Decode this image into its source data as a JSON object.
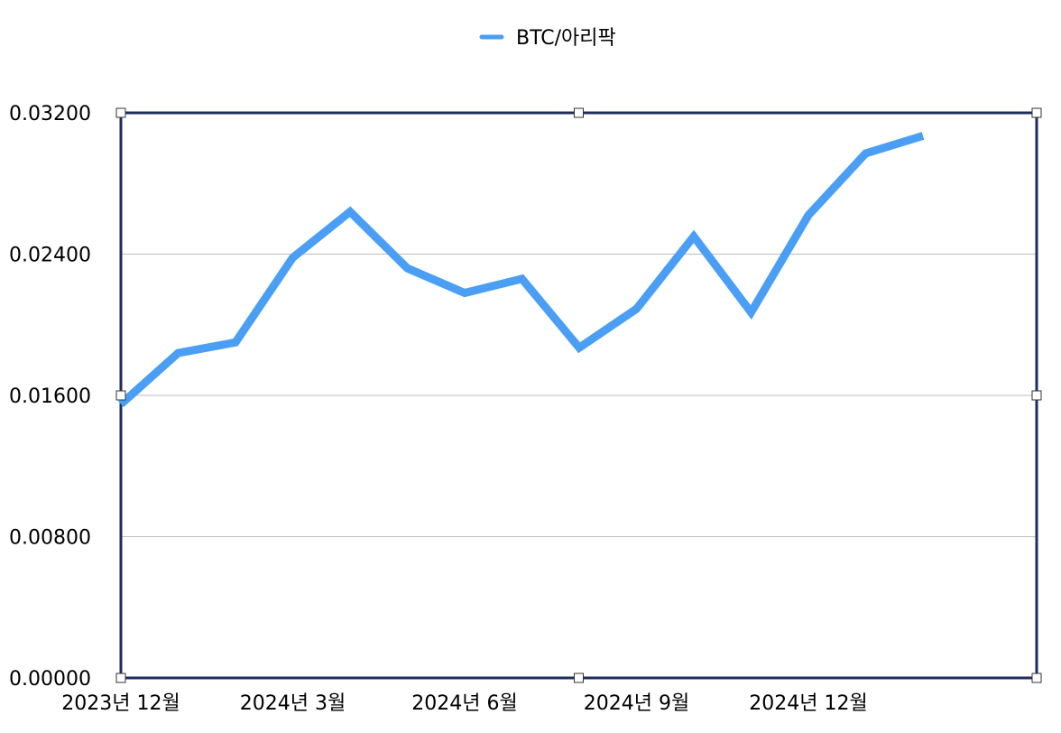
{
  "chart_data": {
    "type": "line",
    "title": "",
    "xlabel": "",
    "ylabel": "",
    "x": [
      "2023-12",
      "2024-01",
      "2024-02",
      "2024-03",
      "2024-04",
      "2024-05",
      "2024-06",
      "2024-07",
      "2024-08",
      "2024-09",
      "2024-10",
      "2024-11",
      "2024-12",
      "2025-01",
      "2025-02"
    ],
    "x_tick_labels": [
      {
        "x": "2023-12",
        "label": "2023년 12월"
      },
      {
        "x": "2024-03",
        "label": "2024년 3월"
      },
      {
        "x": "2024-06",
        "label": "2024년 6월"
      },
      {
        "x": "2024-09",
        "label": "2024년 9월"
      },
      {
        "x": "2024-12",
        "label": "2024년 12월"
      }
    ],
    "y_ticks": [
      "0.00000",
      "0.00800",
      "0.01600",
      "0.02400",
      "0.03200"
    ],
    "ylim": [
      0,
      0.032
    ],
    "grid": true,
    "legend_position": "top-center",
    "series": [
      {
        "name": "BTC/아리팍",
        "color": "#4a9ff5",
        "values": [
          0.0155,
          0.0184,
          0.019,
          0.0238,
          0.0264,
          0.0232,
          0.0218,
          0.0226,
          0.0187,
          0.0209,
          0.025,
          0.0207,
          0.0262,
          0.0297,
          0.0307
        ]
      }
    ]
  }
}
